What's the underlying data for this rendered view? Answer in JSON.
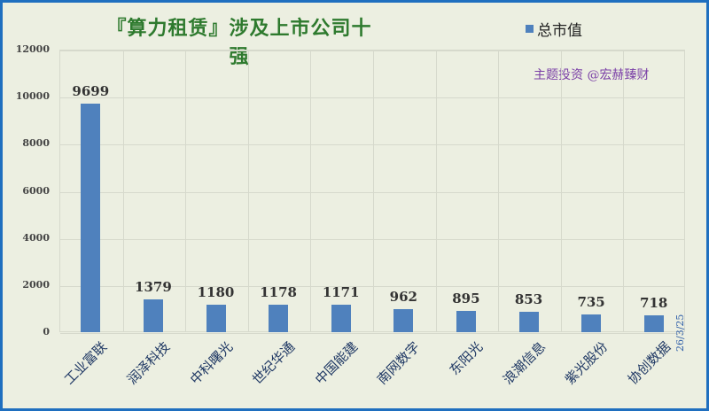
{
  "chart_data": {
    "type": "bar",
    "title": "『算力租赁』涉及上市公司十强",
    "categories": [
      "工业富联",
      "润泽科技",
      "中科曙光",
      "世纪华通",
      "中国能建",
      "南网数字",
      "东阳光",
      "浪潮信息",
      "紫光股份",
      "协创数据"
    ],
    "series": [
      {
        "name": "总市值",
        "values": [
          9699,
          1379,
          1180,
          1178,
          1171,
          962,
          895,
          853,
          735,
          718
        ]
      }
    ],
    "xlabel": "",
    "ylabel": "",
    "ylim": [
      0,
      12000
    ],
    "yticks": [
      "0",
      "2000",
      "4000",
      "6000",
      "8000",
      "10000",
      "12000"
    ],
    "grid": true,
    "legend_position": "top-right",
    "bar_color": "#4f81bd"
  },
  "watermark": "主题投资 @宏赫臻财",
  "date": "26/3/25"
}
